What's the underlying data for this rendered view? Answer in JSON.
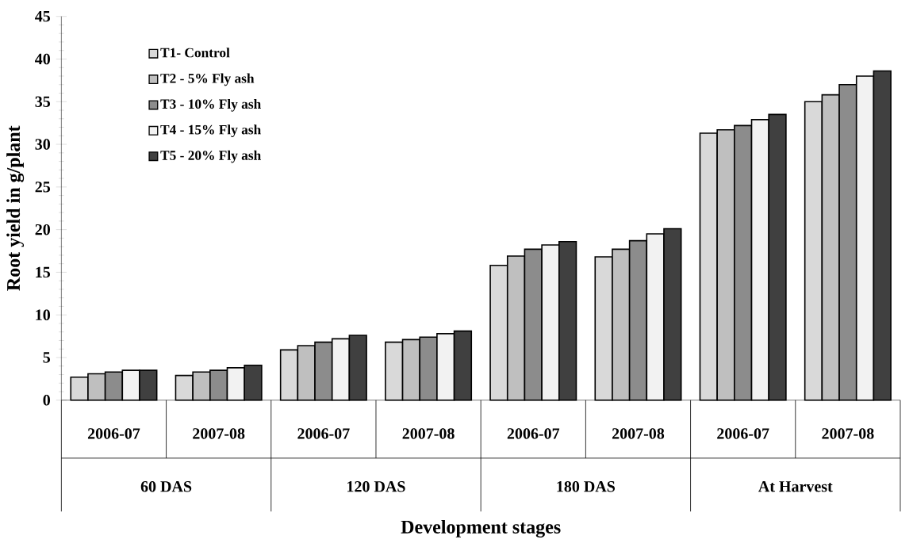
{
  "chart_data": {
    "type": "bar",
    "xlabel": "Development stages",
    "ylabel": "Root yield in g/plant",
    "categories": [
      "2006-07",
      "2007-08",
      "2006-07",
      "2007-08",
      "2006-07",
      "2007-08",
      "2006-07",
      "2007-08"
    ],
    "annotations": [
      "60 DAS",
      "120 DAS",
      "180 DAS",
      "At Harvest"
    ],
    "series": [
      {
        "name": "T1- Control",
        "color": "#d9d9d9",
        "values": [
          2.7,
          2.9,
          5.9,
          6.8,
          15.8,
          16.8,
          31.3,
          35.0
        ]
      },
      {
        "name": "T2 - 5% Fly ash",
        "color": "#bfbfbf",
        "values": [
          3.1,
          3.3,
          6.4,
          7.1,
          16.9,
          17.7,
          31.7,
          35.8
        ]
      },
      {
        "name": "T3 - 10% Fly ash",
        "color": "#8c8c8c",
        "values": [
          3.3,
          3.5,
          6.8,
          7.4,
          17.7,
          18.7,
          32.2,
          37.0
        ]
      },
      {
        "name": "T4 - 15% Fly ash",
        "color": "#f2f2f2",
        "values": [
          3.5,
          3.8,
          7.2,
          7.8,
          18.2,
          19.5,
          32.9,
          38.0
        ]
      },
      {
        "name": "T5 - 20% Fly ash",
        "color": "#404040",
        "values": [
          3.5,
          4.1,
          7.6,
          8.1,
          18.6,
          20.1,
          33.5,
          38.6
        ]
      }
    ],
    "ylim": [
      0,
      45
    ],
    "yticks": [
      0,
      5,
      10,
      15,
      20,
      25,
      30,
      35,
      40,
      45
    ],
    "legend": "top left"
  }
}
